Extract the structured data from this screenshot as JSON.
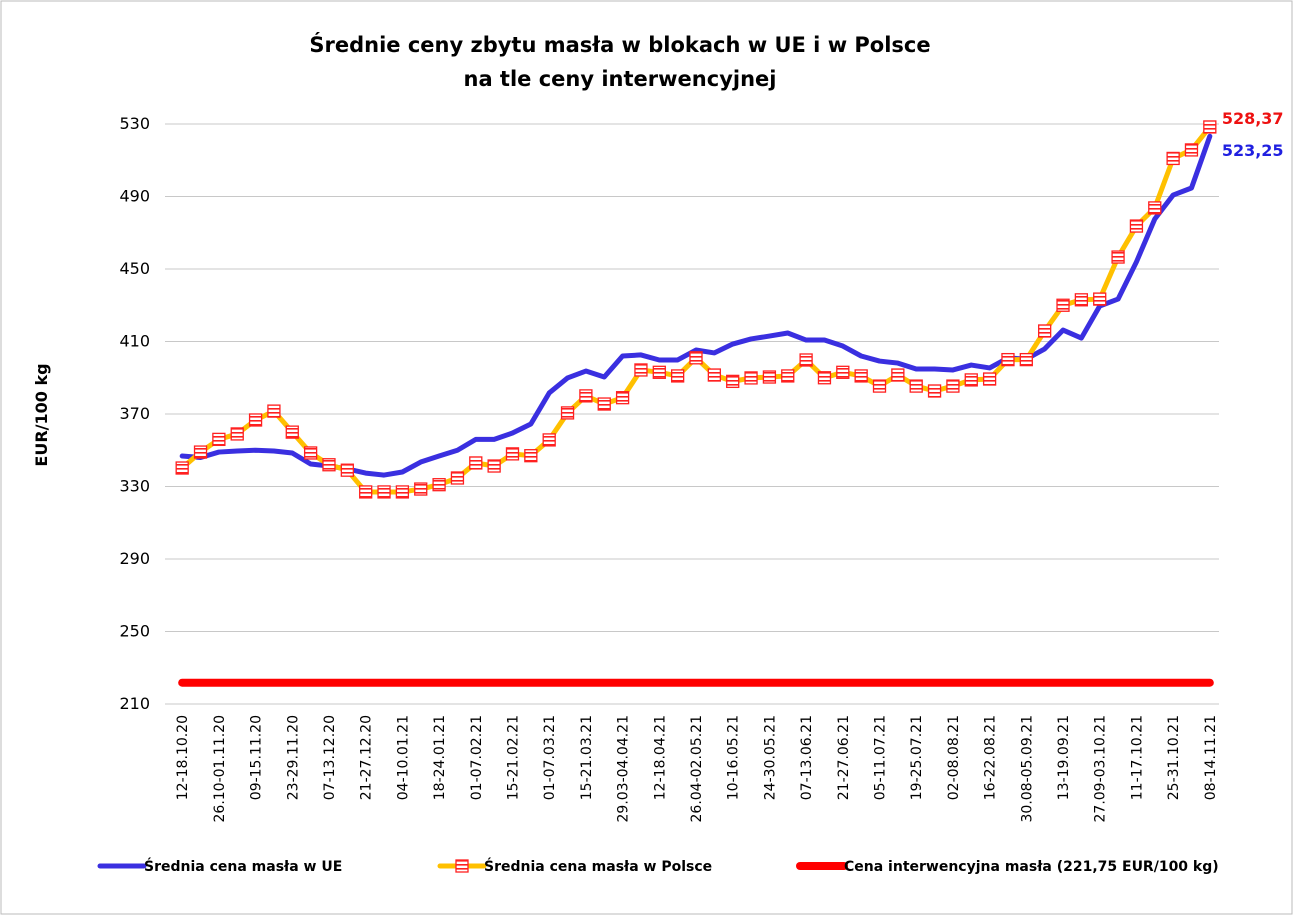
{
  "chart_data": {
    "type": "line",
    "title": [
      "Średnie ceny zbytu masła w blokach w UE i w Polsce",
      "na tle ceny interwencyjnej"
    ],
    "y_label": "EUR/100 kg",
    "categories": [
      "12-18.10.20",
      null,
      "26.10-01.11.20",
      null,
      "09-15.11.20",
      null,
      "23-29.11.20",
      null,
      "07-13.12.20",
      null,
      "21-27.12.20",
      null,
      "04-10.01.21",
      null,
      "18-24.01.21",
      null,
      "01-07.02.21",
      null,
      "15-21.02.21",
      null,
      "01-07.03.21",
      null,
      "15-21.03.21",
      null,
      "29.03-04.04.21",
      null,
      "12-18.04.21",
      null,
      "26.04-02.05.21",
      null,
      "10-16.05.21",
      null,
      "24-30.05.21",
      null,
      "07-13.06.21",
      null,
      "21-27.06.21",
      null,
      "05-11.07.21",
      null,
      "19-25.07.21",
      null,
      "02-08.08.21",
      null,
      "16-22.08.21",
      null,
      "30.08-05.09.21",
      null,
      "13-19.09.21",
      null,
      "27.09-03.10.21",
      null,
      "11-17.10.21",
      null,
      "25-31.10.21",
      null,
      "08-14.11.21"
    ],
    "ylim": [
      210,
      530
    ],
    "yticks": [
      210,
      250,
      290,
      330,
      370,
      410,
      450,
      490,
      530
    ],
    "grid": true,
    "legend": "bottom",
    "series": [
      {
        "name": "Średnia cena masła w UE",
        "color": "#3a2fe0",
        "marker": "none",
        "values": [
          346.8,
          346,
          349,
          349.6,
          350,
          349.6,
          348.5,
          342.4,
          341.3,
          339.7,
          337.4,
          336.3,
          338,
          343.5,
          346.8,
          350,
          356,
          356,
          359.5,
          364.5,
          381.6,
          389.9,
          393.7,
          390.4,
          402,
          402.6,
          399.8,
          399.8,
          405.3,
          403.7,
          408.6,
          411.4,
          413,
          414.7,
          410.8,
          410.8,
          407.5,
          402,
          399.2,
          398.1,
          394.8,
          394.8,
          394.3,
          397,
          395.4,
          400.9,
          400.3,
          405.9,
          416.3,
          411.9,
          429.6,
          433.4,
          453.9,
          477.6,
          490.8,
          494.7,
          523.25
        ],
        "value_labels": [
          null,
          null,
          null,
          null,
          null,
          null,
          null,
          null,
          null,
          null,
          null,
          null,
          null,
          null,
          null,
          null,
          null,
          null,
          null,
          null,
          null,
          null,
          null,
          null,
          null,
          null,
          null,
          null,
          null,
          null,
          null,
          null,
          null,
          null,
          null,
          null,
          null,
          null,
          null,
          null,
          null,
          null,
          null,
          null,
          null,
          null,
          null,
          null,
          null,
          null,
          null,
          null,
          null,
          null,
          null,
          null,
          "523,25"
        ]
      },
      {
        "name": "Średnia cena masła w Polsce",
        "color": "#ffc000",
        "marker": "square",
        "marker_color": "#ff2020",
        "values": [
          340.2,
          349,
          356,
          359,
          366.7,
          371.6,
          360,
          348.5,
          342,
          339,
          327,
          327,
          327,
          328.6,
          331,
          334.7,
          343,
          341.3,
          348,
          347,
          355.7,
          370.6,
          380,
          375.5,
          379,
          394.3,
          393,
          391,
          401,
          391.5,
          388,
          389.9,
          390.4,
          391,
          399.8,
          390,
          393,
          391,
          385.4,
          391.5,
          385.4,
          382.7,
          385.4,
          388.8,
          389.3,
          400,
          400,
          415.8,
          430,
          433,
          433.4,
          456.6,
          473.7,
          483.7,
          511,
          515.7,
          528.37
        ],
        "value_labels": [
          null,
          null,
          null,
          null,
          null,
          null,
          null,
          null,
          null,
          null,
          null,
          null,
          null,
          null,
          null,
          null,
          null,
          null,
          null,
          null,
          null,
          null,
          null,
          null,
          null,
          null,
          null,
          null,
          null,
          null,
          null,
          null,
          null,
          null,
          null,
          null,
          null,
          null,
          null,
          null,
          null,
          null,
          null,
          null,
          null,
          null,
          null,
          null,
          null,
          null,
          null,
          null,
          null,
          null,
          null,
          null,
          "528,37"
        ]
      },
      {
        "name": "Cena interwencyjna masła (221,75 EUR/100 kg)",
        "color": "#ff0000",
        "marker": "none",
        "values": [
          221.75,
          221.75,
          221.75,
          221.75,
          221.75,
          221.75,
          221.75,
          221.75,
          221.75,
          221.75,
          221.75,
          221.75,
          221.75,
          221.75,
          221.75,
          221.75,
          221.75,
          221.75,
          221.75,
          221.75,
          221.75,
          221.75,
          221.75,
          221.75,
          221.75,
          221.75,
          221.75,
          221.75,
          221.75,
          221.75,
          221.75,
          221.75,
          221.75,
          221.75,
          221.75,
          221.75,
          221.75,
          221.75,
          221.75,
          221.75,
          221.75,
          221.75,
          221.75,
          221.75,
          221.75,
          221.75,
          221.75,
          221.75,
          221.75,
          221.75,
          221.75,
          221.75,
          221.75,
          221.75,
          221.75,
          221.75,
          221.75
        ]
      }
    ]
  }
}
